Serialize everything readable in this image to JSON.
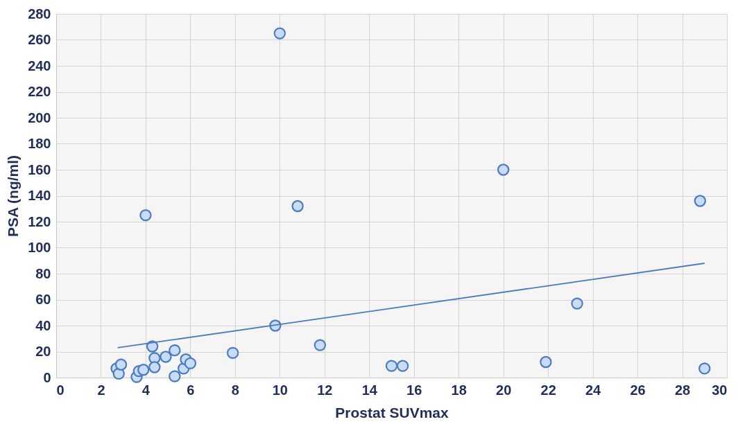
{
  "chart_data": {
    "type": "scatter",
    "xlabel": "Prostat SUVmax",
    "ylabel": "PSA (ng/ml)",
    "xlim": [
      0,
      30
    ],
    "xticks": [
      0,
      2,
      4,
      6,
      8,
      10,
      12,
      14,
      16,
      18,
      20,
      22,
      24,
      26,
      28,
      30
    ],
    "ylim": [
      0,
      280
    ],
    "yticks": [
      0,
      20,
      40,
      60,
      80,
      100,
      120,
      140,
      160,
      180,
      200,
      220,
      240,
      260,
      280
    ],
    "grid": true,
    "series": [
      {
        "color": "#4a7bbf",
        "marker": "circle",
        "x": [
          2.7,
          2.8,
          2.9,
          3.6,
          3.7,
          3.9,
          4.0,
          4.3,
          4.4,
          4.4,
          4.9,
          5.3,
          5.3,
          5.7,
          5.8,
          6.0,
          7.9,
          9.8,
          10.0,
          10.8,
          11.8,
          15.0,
          15.5,
          20.0,
          21.9,
          23.3,
          28.8,
          29.0
        ],
        "values": [
          7,
          3,
          10,
          0.5,
          5,
          6,
          125,
          24,
          15,
          8,
          16,
          21,
          1,
          7,
          14,
          11,
          19,
          40,
          265,
          132,
          25,
          9,
          9,
          160,
          12,
          57,
          136,
          7
        ]
      },
      {
        "type": "line",
        "color": "#4a7bbf",
        "marker": "none",
        "x": [
          2.75,
          29
        ],
        "values": [
          23,
          88
        ]
      }
    ]
  }
}
